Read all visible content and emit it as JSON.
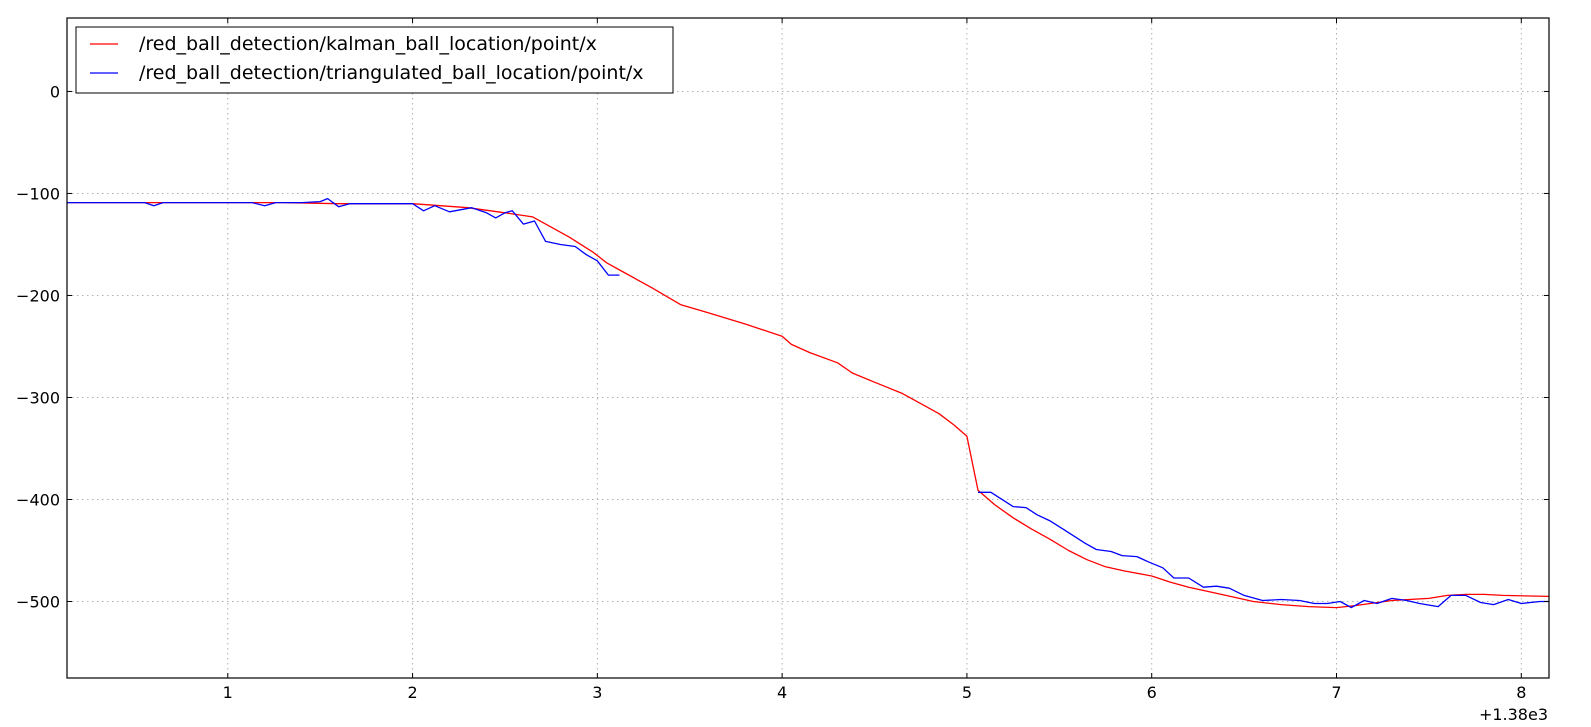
{
  "chart_data": {
    "type": "line",
    "title": "",
    "xlabel": "",
    "ylabel": "",
    "x_offset_label": "+1.38e3",
    "xlim": [
      0.13,
      8.15
    ],
    "ylim": [
      -575,
      72
    ],
    "xticks": [
      1,
      2,
      3,
      4,
      5,
      6,
      7,
      8
    ],
    "xtick_labels": [
      "1",
      "2",
      "3",
      "4",
      "5",
      "6",
      "7",
      "8"
    ],
    "yticks": [
      0,
      -100,
      -200,
      -300,
      -400,
      -500
    ],
    "ytick_labels": [
      "0",
      "−100",
      "−200",
      "−300",
      "−400",
      "−500"
    ],
    "grid": true,
    "legend_position": "upper-left",
    "series": [
      {
        "name": "/red_ball_detection/kalman_ball_location/point/x",
        "color": "#ff0000",
        "x": [
          0.13,
          0.6,
          1.0,
          1.3,
          1.6,
          2.0,
          2.3,
          2.5,
          2.65,
          2.75,
          2.85,
          2.98,
          3.05,
          3.15,
          3.3,
          3.45,
          3.6,
          3.8,
          4.0,
          4.05,
          4.15,
          4.3,
          4.38,
          4.5,
          4.65,
          4.75,
          4.85,
          4.93,
          5.0,
          5.06,
          5.15,
          5.25,
          5.35,
          5.45,
          5.55,
          5.65,
          5.75,
          5.85,
          6.0,
          6.1,
          6.2,
          6.3,
          6.45,
          6.55,
          6.7,
          6.85,
          7.0,
          7.1,
          7.3,
          7.5,
          7.6,
          7.7,
          7.8,
          7.9,
          8.15
        ],
        "y": [
          -109,
          -109,
          -109,
          -109,
          -110,
          -110,
          -114,
          -119,
          -123,
          -133,
          -143,
          -158,
          -168,
          -178,
          -193,
          -209,
          -217,
          -228,
          -240,
          -248,
          -256,
          -266,
          -276,
          -285,
          -296,
          -306,
          -316,
          -327,
          -338,
          -391,
          -405,
          -418,
          -429,
          -439,
          -450,
          -459,
          -466,
          -470,
          -475,
          -481,
          -486,
          -490,
          -496,
          -500,
          -503,
          -505,
          -506,
          -504,
          -499,
          -497,
          -494,
          -493,
          -493,
          -494,
          -495
        ]
      },
      {
        "name": "/red_ball_detection/triangulated_ball_location/point/x",
        "color": "#0000ff",
        "x": [
          0.13,
          0.4,
          0.55,
          0.6,
          0.65,
          0.8,
          1.0,
          1.13,
          1.2,
          1.26,
          1.4,
          1.5,
          1.54,
          1.6,
          1.66,
          1.8,
          2.0,
          2.06,
          2.12,
          2.2,
          2.32,
          2.4,
          2.45,
          2.5,
          2.54,
          2.6,
          2.66,
          2.72,
          2.8,
          2.88,
          2.94,
          3.0,
          3.06,
          3.12
        ],
        "y": [
          -109,
          -109,
          -109,
          -112,
          -109,
          -109,
          -109,
          -109,
          -112,
          -109,
          -109,
          -108,
          -105,
          -113,
          -110,
          -110,
          -110,
          -117,
          -112,
          -118,
          -114,
          -119,
          -124,
          -119,
          -117,
          -130,
          -127,
          -147,
          -150,
          -152,
          -160,
          -166,
          -180,
          -180
        ]
      },
      {
        "name": "",
        "color": "#0000ff",
        "x": [
          5.06,
          5.13,
          5.25,
          5.32,
          5.38,
          5.45,
          5.52,
          5.58,
          5.64,
          5.7,
          5.78,
          5.84,
          5.92,
          5.98,
          6.06,
          6.12,
          6.2,
          6.28,
          6.35,
          6.42,
          6.5,
          6.6,
          6.7,
          6.8,
          6.88,
          6.95,
          7.02,
          7.08,
          7.15,
          7.22,
          7.3,
          7.38,
          7.45,
          7.55,
          7.62,
          7.7,
          7.78,
          7.85,
          7.93,
          8.0,
          8.1,
          8.15
        ],
        "y": [
          -393,
          -393,
          -407,
          -408,
          -415,
          -421,
          -429,
          -436,
          -443,
          -449,
          -451,
          -455,
          -456,
          -461,
          -467,
          -477,
          -477,
          -486,
          -485,
          -487,
          -494,
          -499,
          -498,
          -499,
          -502,
          -502,
          -500,
          -506,
          -499,
          -502,
          -497,
          -499,
          -502,
          -505,
          -494,
          -494,
          -501,
          -503,
          -498,
          -502,
          -500,
          -500
        ]
      }
    ]
  }
}
